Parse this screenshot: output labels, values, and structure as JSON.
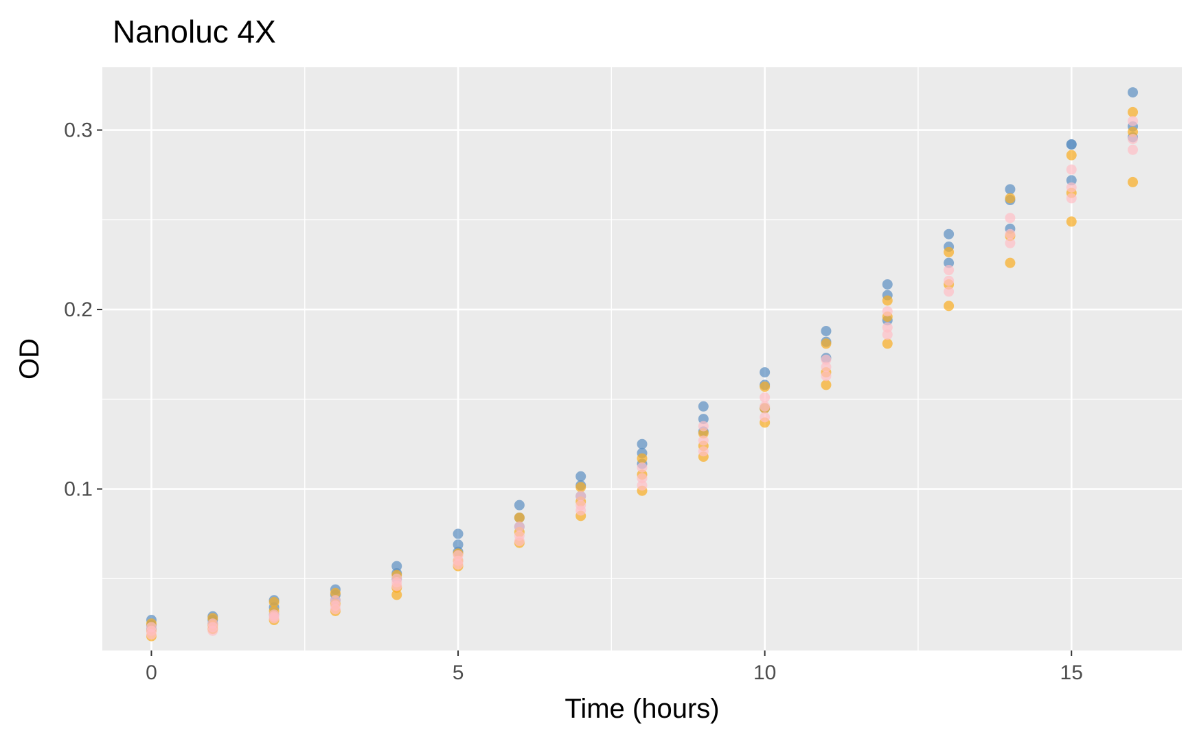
{
  "chart_data": {
    "type": "scatter",
    "title": "Nanoluc 4X",
    "xlabel": "Time (hours)",
    "ylabel": "OD",
    "xlim": [
      -0.8,
      16.8
    ],
    "ylim": [
      0.01,
      0.335
    ],
    "xticks": [
      0,
      5,
      10,
      15
    ],
    "xtick_labels": [
      "0",
      "5",
      "10",
      "15"
    ],
    "yticks": [
      0.1,
      0.2,
      0.3
    ],
    "ytick_labels": [
      "0.1",
      "0.2",
      "0.3"
    ],
    "grid": true,
    "legend": "none",
    "colors": {
      "panel": "#ebebeb",
      "grid": "#ffffff",
      "series": [
        "#5b8ec2",
        "#f9ad21",
        "#ffbfc6"
      ]
    },
    "series": [
      {
        "color": "#5b8ec2",
        "x": [
          0,
          0,
          0,
          1,
          1,
          1,
          2,
          2,
          2,
          3,
          3,
          3,
          4,
          4,
          4,
          5,
          5,
          5,
          6,
          6,
          6,
          7,
          7,
          7,
          8,
          8,
          8,
          9,
          9,
          9,
          10,
          10,
          10,
          11,
          11,
          11,
          12,
          12,
          12,
          13,
          13,
          13,
          14,
          14,
          14,
          15,
          15,
          15,
          16,
          16,
          16
        ],
        "y": [
          0.027,
          0.024,
          0.022,
          0.029,
          0.027,
          0.025,
          0.038,
          0.034,
          0.03,
          0.044,
          0.041,
          0.038,
          0.057,
          0.053,
          0.05,
          0.075,
          0.069,
          0.065,
          0.091,
          0.084,
          0.079,
          0.107,
          0.102,
          0.096,
          0.125,
          0.12,
          0.114,
          0.146,
          0.139,
          0.132,
          0.165,
          0.158,
          0.145,
          0.188,
          0.182,
          0.173,
          0.214,
          0.208,
          0.194,
          0.242,
          0.235,
          0.226,
          0.267,
          0.261,
          0.245,
          0.292,
          0.292,
          0.272,
          0.321,
          0.302,
          0.296
        ]
      },
      {
        "color": "#f9ad21",
        "x": [
          0,
          0,
          0,
          1,
          1,
          1,
          2,
          2,
          2,
          3,
          3,
          3,
          4,
          4,
          4,
          5,
          5,
          5,
          6,
          6,
          6,
          7,
          7,
          7,
          8,
          8,
          8,
          9,
          9,
          9,
          10,
          10,
          10,
          11,
          11,
          11,
          12,
          12,
          12,
          13,
          13,
          13,
          14,
          14,
          14,
          15,
          15,
          15,
          16,
          16,
          16
        ],
        "y": [
          0.025,
          0.021,
          0.018,
          0.028,
          0.024,
          0.022,
          0.037,
          0.032,
          0.027,
          0.042,
          0.036,
          0.032,
          0.052,
          0.045,
          0.041,
          0.064,
          0.06,
          0.057,
          0.084,
          0.076,
          0.07,
          0.101,
          0.093,
          0.085,
          0.117,
          0.108,
          0.099,
          0.131,
          0.124,
          0.118,
          0.157,
          0.145,
          0.137,
          0.181,
          0.165,
          0.158,
          0.205,
          0.196,
          0.181,
          0.232,
          0.214,
          0.202,
          0.262,
          0.241,
          0.226,
          0.286,
          0.265,
          0.249,
          0.31,
          0.299,
          0.271
        ]
      },
      {
        "color": "#ffbfc6",
        "x": [
          0,
          0,
          0,
          1,
          1,
          1,
          2,
          2,
          2,
          3,
          3,
          3,
          4,
          4,
          4,
          5,
          5,
          5,
          6,
          6,
          6,
          7,
          7,
          7,
          8,
          8,
          8,
          9,
          9,
          9,
          10,
          10,
          10,
          11,
          11,
          11,
          12,
          12,
          12,
          13,
          13,
          13,
          14,
          14,
          14,
          15,
          15,
          15,
          16,
          16,
          16
        ],
        "y": [
          0.023,
          0.021,
          0.019,
          0.025,
          0.023,
          0.021,
          0.03,
          0.029,
          0.028,
          0.038,
          0.035,
          0.033,
          0.05,
          0.048,
          0.046,
          0.063,
          0.06,
          0.058,
          0.079,
          0.074,
          0.071,
          0.096,
          0.091,
          0.088,
          0.112,
          0.106,
          0.102,
          0.135,
          0.127,
          0.121,
          0.151,
          0.146,
          0.14,
          0.172,
          0.168,
          0.163,
          0.199,
          0.19,
          0.186,
          0.222,
          0.216,
          0.21,
          0.251,
          0.242,
          0.237,
          0.278,
          0.268,
          0.262,
          0.305,
          0.295,
          0.289
        ]
      }
    ]
  }
}
